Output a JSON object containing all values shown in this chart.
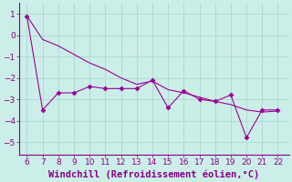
{
  "x": [
    6,
    7,
    8,
    9,
    10,
    11,
    12,
    13,
    14,
    15,
    16,
    17,
    18,
    19,
    20,
    21,
    22
  ],
  "y_data": [
    0.9,
    -3.5,
    -2.7,
    -2.7,
    -2.4,
    -2.5,
    -2.5,
    -2.5,
    -2.1,
    -3.4,
    -2.6,
    -3.0,
    -3.1,
    -2.8,
    -4.8,
    -3.5,
    -3.5
  ],
  "y_trend": [
    0.9,
    -0.2,
    -0.5,
    -0.9,
    -1.3,
    -1.6,
    -2.0,
    -2.3,
    -2.15,
    -2.55,
    -2.7,
    -2.9,
    -3.1,
    -3.25,
    -3.5,
    -3.6,
    -3.55
  ],
  "line_color": "#990099",
  "marker": "D",
  "marker_size": 2.5,
  "bg_color": "#cceee8",
  "grid_color": "#aad9d0",
  "xlabel": "Windchill (Refroidissement éolien,°C)",
  "xlim": [
    5.5,
    22.7
  ],
  "ylim": [
    -5.6,
    1.5
  ],
  "xticks": [
    6,
    7,
    8,
    9,
    10,
    11,
    12,
    13,
    14,
    15,
    16,
    17,
    18,
    19,
    20,
    21,
    22
  ],
  "yticks": [
    -5,
    -4,
    -3,
    -2,
    -1,
    0,
    1
  ],
  "xlabel_fontsize": 7.5,
  "tick_fontsize": 6.5,
  "label_color": "#880088",
  "tick_color": "#880088",
  "spine_color": "#880088"
}
